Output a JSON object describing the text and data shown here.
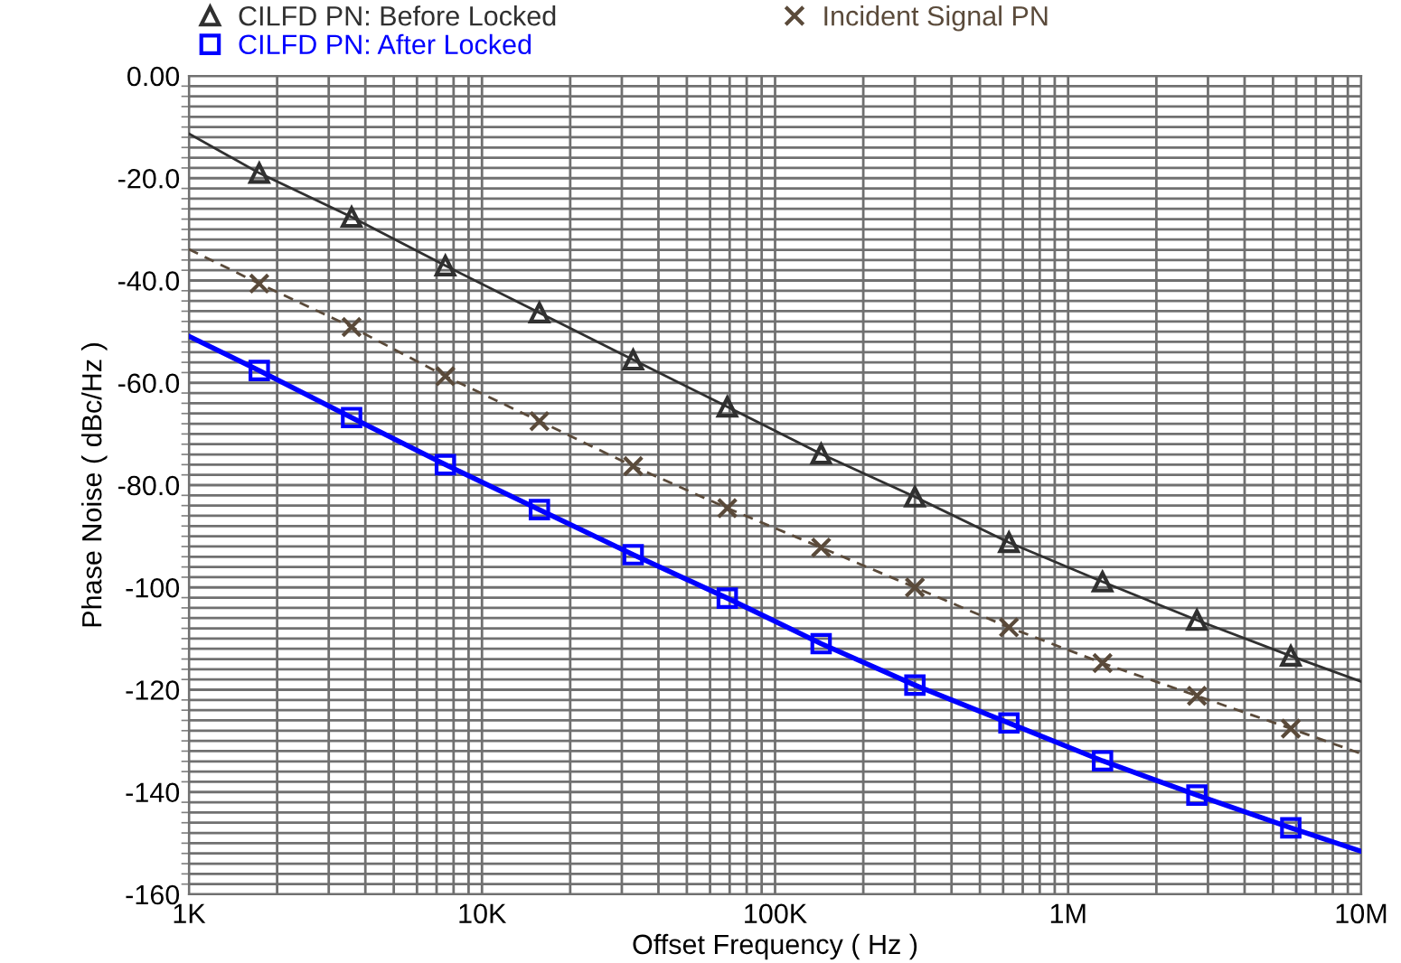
{
  "chart_data": {
    "type": "line",
    "xlabel": "Offset Frequency ( Hz )",
    "ylabel": "Phase Noise ( dBc/Hz )",
    "log": "x",
    "grid": true,
    "legend": "top",
    "x": [
      1000,
      1738,
      3590,
      7500,
      15700,
      32800,
      68700,
      143600,
      300000,
      628000,
      1310000,
      2750000,
      5750000,
      10000000
    ],
    "series": [
      {
        "name": "CILFD PN: Before Locked",
        "color": "#303030",
        "marker": "triangle",
        "line_style": "solid",
        "values": [
          -11.3,
          -19,
          -27.6,
          -37.1,
          -46.3,
          -55.5,
          -64.7,
          -73.9,
          -82.3,
          -91.2,
          -98.9,
          -106.4,
          -113.4,
          -118.4
        ]
      },
      {
        "name": "CILFD PN: After Locked",
        "color": "#0000ff",
        "marker": "square",
        "line_style": "solid",
        "values": [
          -50.9,
          -57.6,
          -66.8,
          -76,
          -84.8,
          -93.6,
          -102.1,
          -111,
          -119.1,
          -126.5,
          -133.9,
          -140.6,
          -147,
          -151.6
        ]
      },
      {
        "name": "Incident Signal PN",
        "color": "#5a4a3a",
        "marker": "cross",
        "line_style": "dashed",
        "values": [
          -33.9,
          -40.6,
          -49.1,
          -58.7,
          -67.5,
          -76.3,
          -84.5,
          -92.2,
          -100,
          -107.8,
          -114.8,
          -121.2,
          -127.6,
          -132.5
        ]
      }
    ],
    "xlim": [
      1000,
      10000000
    ],
    "xticks": [
      {
        "value": 1000,
        "label": "1K"
      },
      {
        "value": 10000,
        "label": "10K"
      },
      {
        "value": 100000,
        "label": "100K"
      },
      {
        "value": 1000000,
        "label": "1M"
      },
      {
        "value": 10000000,
        "label": "10M"
      }
    ],
    "ylim": [
      -160,
      0
    ],
    "yticks": [
      {
        "value": 0,
        "label": "0.00"
      },
      {
        "value": -20,
        "label": "-20.0"
      },
      {
        "value": -40,
        "label": "-40.0"
      },
      {
        "value": -60,
        "label": "-60.0"
      },
      {
        "value": -80,
        "label": "-80.0"
      },
      {
        "value": -100,
        "label": "-100"
      },
      {
        "value": -120,
        "label": "-120"
      },
      {
        "value": -140,
        "label": "-140"
      },
      {
        "value": -160,
        "label": "-160"
      }
    ]
  }
}
